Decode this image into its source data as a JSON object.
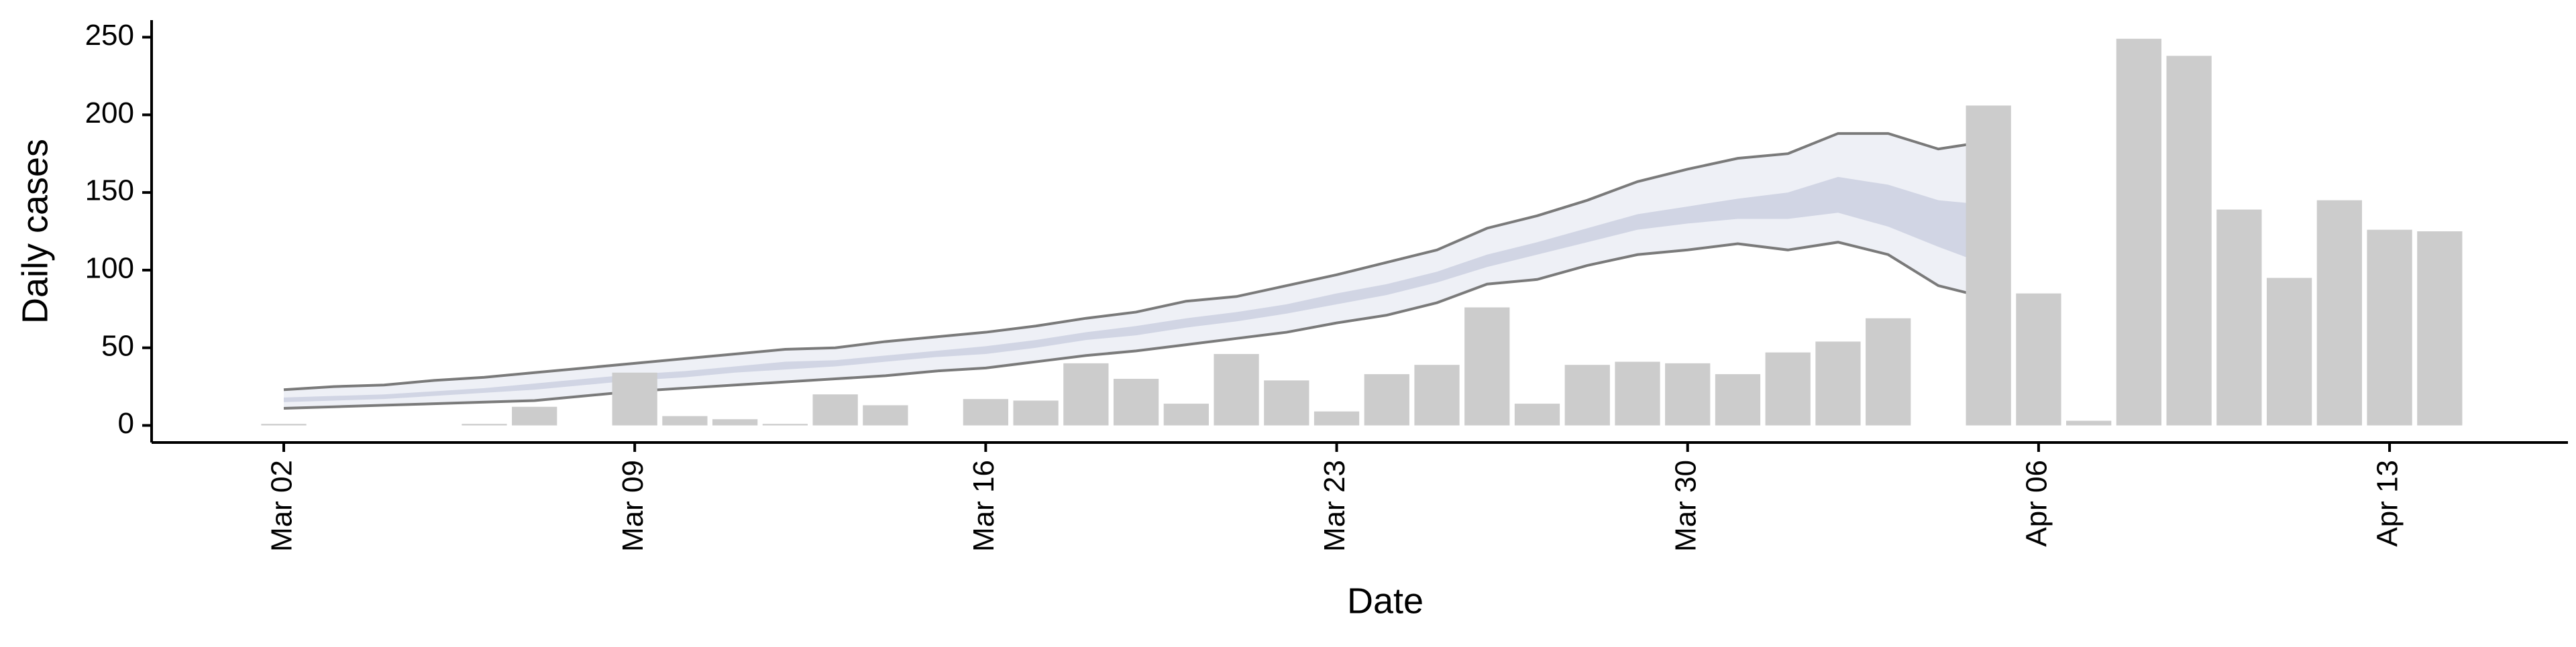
{
  "chart_data": {
    "type": "bar",
    "x_label": "Date",
    "y_label": "Daily cases",
    "categories": [
      "Mar 02",
      null,
      null,
      null,
      null,
      null,
      null,
      "Mar 09",
      null,
      null,
      null,
      null,
      null,
      null,
      "Mar 16",
      null,
      null,
      null,
      null,
      null,
      null,
      "Mar 23",
      null,
      null,
      null,
      null,
      null,
      null,
      "Mar 30",
      null,
      null,
      null,
      null,
      null,
      null,
      "Apr 06",
      null,
      null,
      null,
      null,
      null,
      null,
      "Apr 13",
      null
    ],
    "values": [
      1,
      0,
      0,
      0,
      1,
      12,
      0,
      34,
      6,
      4,
      1,
      20,
      13,
      0,
      17,
      16,
      40,
      30,
      14,
      46,
      29,
      9,
      33,
      39,
      76,
      14,
      39,
      41,
      40,
      33,
      47,
      54,
      69,
      0,
      206,
      85,
      3,
      249,
      238,
      139,
      95,
      145,
      126,
      125
    ],
    "color": "#cccccc",
    "bands": [
      {
        "color": "#eceef5",
        "line_color": "#7a7a7a",
        "lower": [
          11,
          12,
          13,
          14,
          15,
          16,
          19,
          22,
          24,
          26,
          28,
          30,
          32,
          35,
          37,
          41,
          45,
          48,
          52,
          56,
          60,
          66,
          71,
          79,
          91,
          94,
          103,
          110,
          113,
          117,
          113,
          118,
          110,
          90,
          82,
          null,
          null,
          null,
          null,
          null,
          null,
          null,
          null,
          null
        ],
        "upper": [
          23,
          25,
          26,
          29,
          31,
          34,
          37,
          40,
          43,
          46,
          49,
          50,
          54,
          57,
          60,
          64,
          69,
          73,
          80,
          83,
          90,
          97,
          105,
          113,
          127,
          135,
          145,
          157,
          165,
          172,
          175,
          188,
          188,
          178,
          183,
          null,
          null,
          null,
          null,
          null,
          null,
          null,
          null,
          null
        ]
      },
      {
        "color": "#cdd1e2",
        "lower": [
          15,
          16,
          17,
          19,
          21,
          23,
          26,
          29,
          31,
          34,
          36,
          38,
          41,
          44,
          46,
          50,
          55,
          58,
          63,
          67,
          72,
          78,
          84,
          92,
          102,
          110,
          118,
          126,
          130,
          133,
          133,
          137,
          128,
          115,
          103,
          null,
          null,
          null,
          null,
          null,
          null,
          null,
          null,
          null
        ],
        "upper": [
          18,
          19,
          20,
          22,
          24,
          27,
          30,
          33,
          35,
          38,
          41,
          42,
          45,
          48,
          51,
          55,
          60,
          64,
          69,
          73,
          78,
          85,
          91,
          99,
          110,
          118,
          127,
          136,
          141,
          146,
          150,
          160,
          155,
          145,
          142,
          null,
          null,
          null,
          null,
          null,
          null,
          null,
          null,
          null
        ]
      }
    ],
    "ylim": [
      -11,
      261
    ],
    "yticks": [
      0,
      50,
      100,
      150,
      200,
      250
    ]
  }
}
